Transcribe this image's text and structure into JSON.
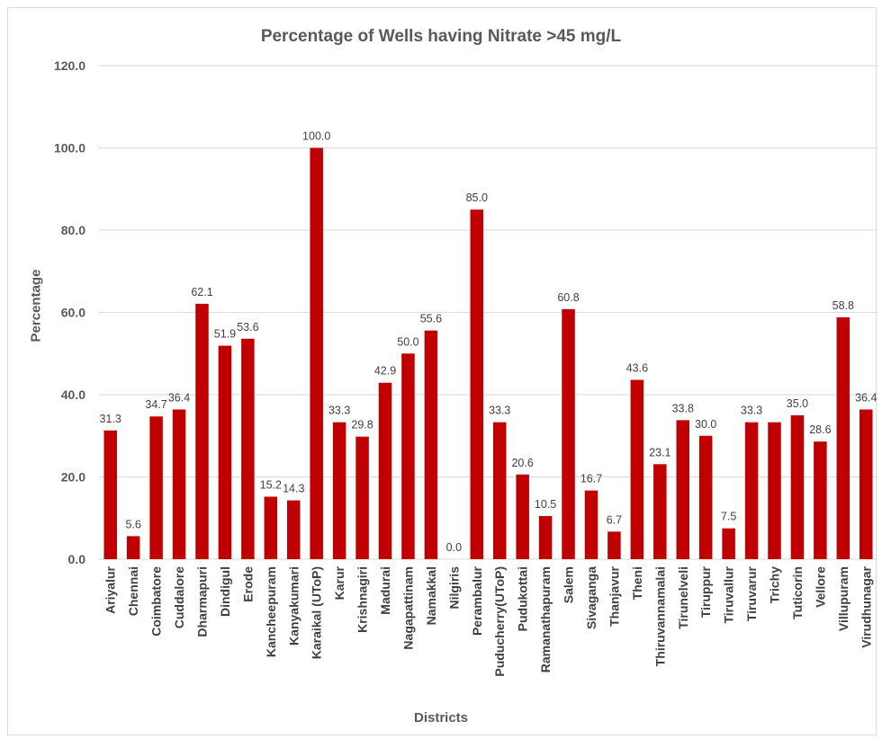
{
  "chart_data": {
    "type": "bar",
    "title": "Percentage of Wells having Nitrate >45 mg/L",
    "xlabel": "Districts",
    "ylabel": "Percentage",
    "ylim": [
      0,
      120
    ],
    "yticks": [
      "0.0",
      "20.0",
      "40.0",
      "60.0",
      "80.0",
      "100.0",
      "120.0"
    ],
    "grid": true,
    "bar_color": "#c00000",
    "categories": [
      "Ariyalur",
      "Chennai",
      "Coimbatore",
      "Cuddalore",
      "Dharmapuri",
      "Dindigul",
      "Erode",
      "Kancheepuram",
      "Kanyakumari",
      "Karaikal (UToP)",
      "Karur",
      "Krishnagiri",
      "Madurai",
      "Nagapattinam",
      "Namakkal",
      "Nilgiris",
      "Perambalur",
      "Puducherry(UToP)",
      "Pudukottai",
      "Ramanathapuram",
      "Salem",
      "Sivaganga",
      "Thanjavur",
      "Theni",
      "Thiruvannamalai",
      "Tirunelveli",
      "Tiruppur",
      "Tiruvallur",
      "Tiruvarur",
      "Trichy",
      "Tuticorin",
      "Vellore",
      "Villupuram",
      "Virudhunagar"
    ],
    "values": [
      31.3,
      5.6,
      34.7,
      36.4,
      62.1,
      51.9,
      53.6,
      15.2,
      14.3,
      100.0,
      33.3,
      29.8,
      42.9,
      50.0,
      55.6,
      0.0,
      85.0,
      33.3,
      20.6,
      10.5,
      60.8,
      16.7,
      6.7,
      43.6,
      23.1,
      33.8,
      30.0,
      7.5,
      33.3,
      33.3,
      35.0,
      28.6,
      58.8,
      36.4
    ],
    "data_labels": [
      "31.3",
      "5.6",
      "34.7",
      "36.4",
      "62.1",
      "51.9",
      "53.6",
      "15.2",
      "14.3",
      "100.0",
      "33.3",
      "29.8",
      "42.9",
      "50.0",
      "55.6",
      "0.0",
      "85.0",
      "33.3",
      "20.6",
      "10.5",
      "60.8",
      "16.7",
      "6.7",
      "43.6",
      "23.1",
      "33.8",
      "30.0",
      "7.5",
      "33.3",
      null,
      "35.0",
      "28.6",
      "58.8",
      "36.4"
    ]
  }
}
